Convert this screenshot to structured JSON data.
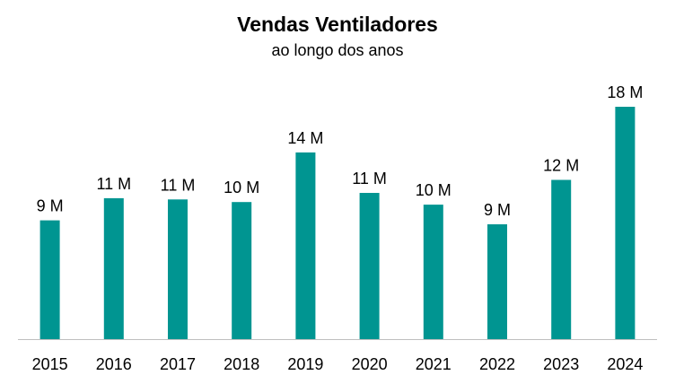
{
  "chart_data": {
    "type": "bar",
    "title": "Vendas Ventiladores",
    "subtitle": "ao longo dos anos",
    "xlabel": "",
    "ylabel": "",
    "categories": [
      "2015",
      "2016",
      "2017",
      "2018",
      "2019",
      "2020",
      "2021",
      "2022",
      "2023",
      "2024"
    ],
    "values": [
      9.1,
      10.8,
      10.7,
      10.5,
      14.3,
      11.2,
      10.3,
      8.8,
      12.2,
      17.8
    ],
    "data_labels": [
      "9 M",
      "11 M",
      "11 M",
      "10 M",
      "14 M",
      "11 M",
      "10 M",
      "9 M",
      "12 M",
      "18 M"
    ],
    "ylim": [
      0,
      17.8
    ],
    "grid": false,
    "legend": "none",
    "bar_color": "#009591",
    "axis_color": "#BFBFBF"
  }
}
